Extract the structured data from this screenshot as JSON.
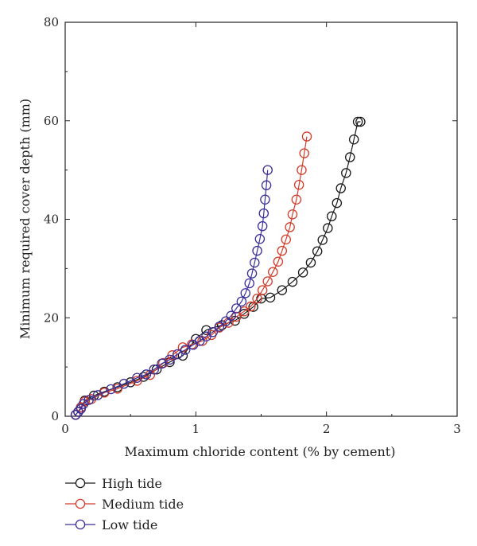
{
  "chart_data": {
    "type": "line",
    "xlabel": "Maximum chloride content (% by cement)",
    "ylabel": "Minimum required cover depth (mm)",
    "xlim": [
      0,
      3
    ],
    "ylim": [
      0,
      80
    ],
    "xticks": [
      0,
      1,
      2,
      3
    ],
    "yticks": [
      0,
      20,
      40,
      60,
      80
    ],
    "xtick_labels": [
      "0",
      "1",
      "2",
      "3"
    ],
    "ytick_labels": [
      "0",
      "20",
      "40",
      "60",
      "80"
    ],
    "grid": false,
    "legend_position": "below",
    "marker": "open-circle",
    "series": [
      {
        "name": "High tide",
        "color": "#1a1a1a",
        "x": [
          0.08,
          0.1,
          0.12,
          0.15,
          0.22,
          0.3,
          0.4,
          0.5,
          0.6,
          0.7,
          0.8,
          0.9,
          1.0,
          1.08,
          1.2,
          1.3,
          1.37,
          1.44,
          1.5,
          1.57,
          1.66,
          1.74,
          1.82,
          1.88,
          1.93,
          1.97,
          2.01,
          2.04,
          2.08,
          2.11,
          2.15,
          2.18,
          2.21,
          2.24,
          2.26
        ],
        "y": [
          0.3,
          0.9,
          1.8,
          3.2,
          4.2,
          5.0,
          5.9,
          6.9,
          8.0,
          9.5,
          11.0,
          12.3,
          15.7,
          17.5,
          18.5,
          19.4,
          20.8,
          22.2,
          23.9,
          24.1,
          25.6,
          27.3,
          29.2,
          31.2,
          33.5,
          35.8,
          38.2,
          40.6,
          43.3,
          46.3,
          49.4,
          52.6,
          56.2,
          59.8,
          59.8
        ],
        "_note": "unused"
      },
      {
        "name": "Medium tide",
        "color": "#d23c2a",
        "x": [
          0.08,
          0.1,
          0.12,
          0.15,
          0.2,
          0.3,
          0.4,
          0.55,
          0.65,
          0.75,
          0.82,
          0.9,
          0.97,
          1.05,
          1.12,
          1.18,
          1.25,
          1.31,
          1.37,
          1.42,
          1.47,
          1.51,
          1.55,
          1.59,
          1.63,
          1.66,
          1.69,
          1.72,
          1.74,
          1.77,
          1.79,
          1.81,
          1.83,
          1.85
        ],
        "y": [
          0.3,
          0.9,
          1.8,
          3.0,
          3.5,
          4.8,
          5.6,
          7.2,
          8.4,
          10.8,
          12.4,
          14.0,
          14.6,
          15.3,
          16.5,
          18.0,
          19.0,
          20.2,
          21.3,
          22.3,
          23.9,
          25.6,
          27.4,
          29.3,
          31.4,
          33.6,
          35.9,
          38.4,
          41.0,
          44.0,
          47.0,
          50.0,
          53.4,
          56.8
        ]
      },
      {
        "name": "Low tide",
        "color": "#3a2f9a",
        "x": [
          0.08,
          0.1,
          0.12,
          0.14,
          0.18,
          0.25,
          0.35,
          0.45,
          0.55,
          0.62,
          0.68,
          0.74,
          0.8,
          0.86,
          0.92,
          0.98,
          1.03,
          1.08,
          1.13,
          1.18,
          1.23,
          1.27,
          1.31,
          1.35,
          1.38,
          1.41,
          1.43,
          1.45,
          1.47,
          1.49,
          1.51,
          1.52,
          1.53,
          1.54,
          1.55
        ],
        "y": [
          0.3,
          0.9,
          1.5,
          2.5,
          3.3,
          4.3,
          5.5,
          6.6,
          7.8,
          8.5,
          9.5,
          10.7,
          11.5,
          12.6,
          13.5,
          14.5,
          15.3,
          16.2,
          17.1,
          18.2,
          19.3,
          20.4,
          21.9,
          23.3,
          25.0,
          27.0,
          29.0,
          31.2,
          33.6,
          36.0,
          38.6,
          41.2,
          44.0,
          46.9,
          50.0
        ]
      }
    ]
  }
}
